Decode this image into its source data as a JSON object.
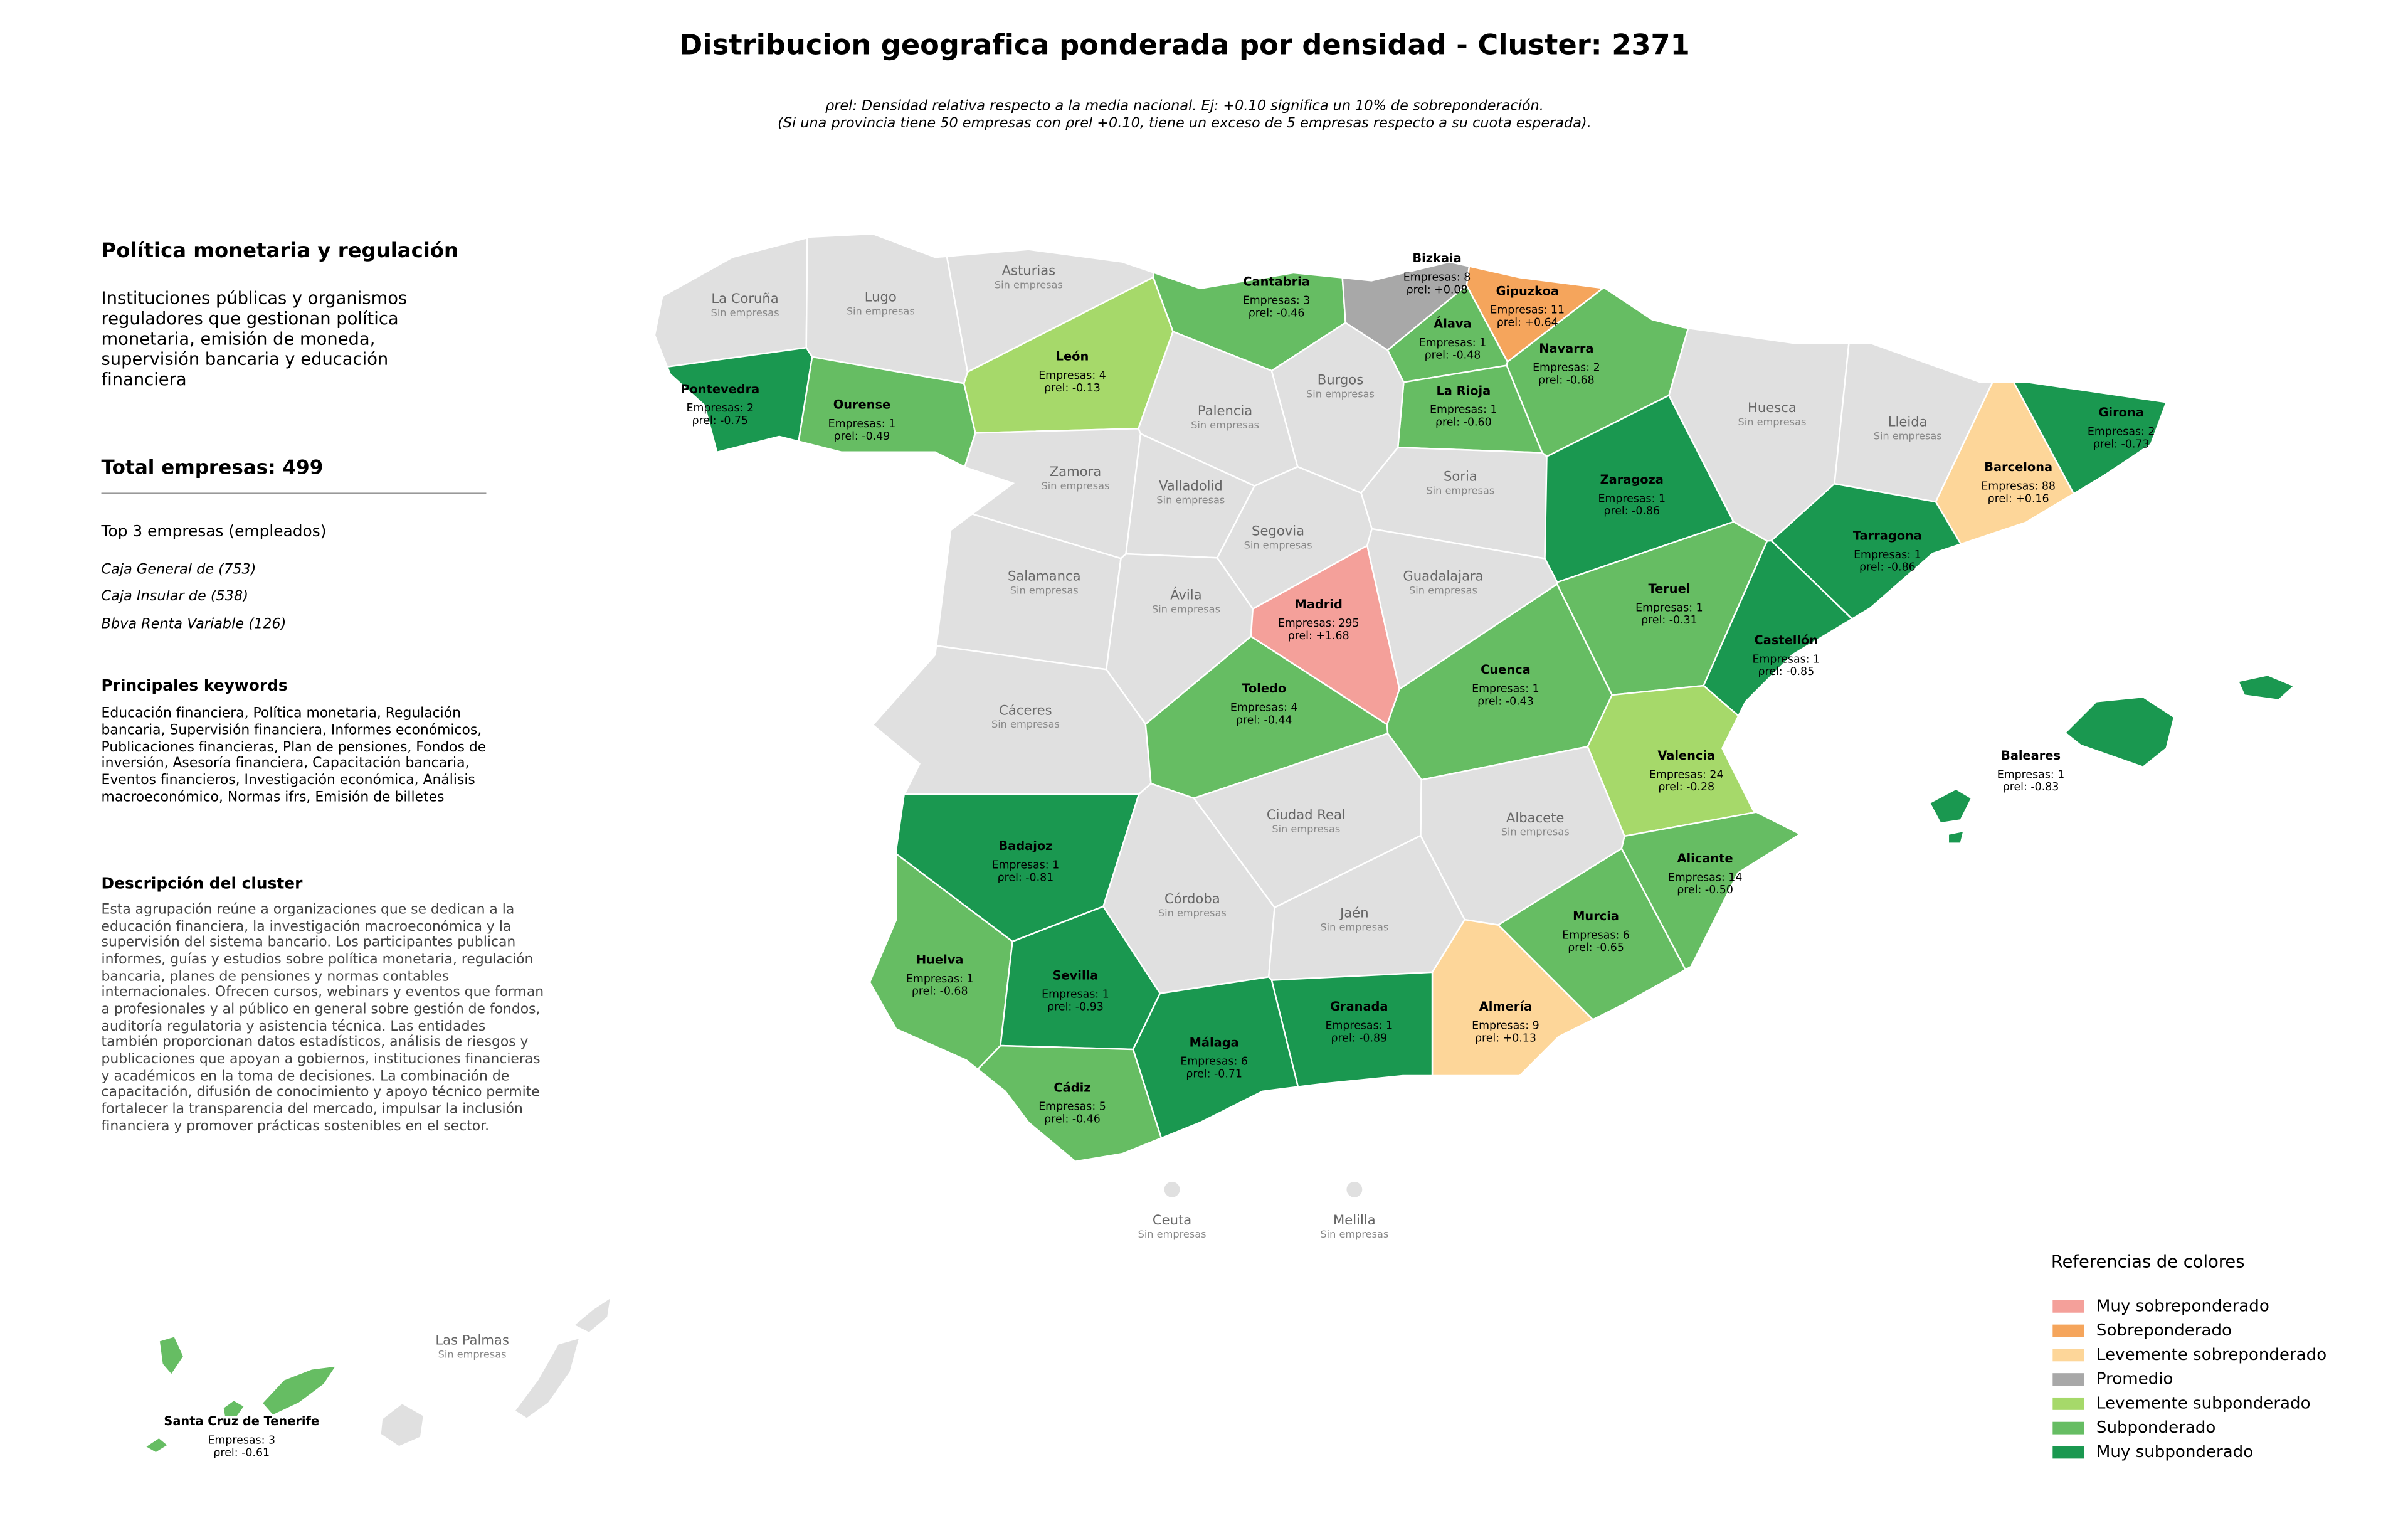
{
  "header": {
    "title": "Distribucion geografica ponderada por densidad - Cluster: 2371",
    "subtitle_lines": [
      "ρrel: Densidad relativa respecto a la media nacional. Ej: +0.10 significa un 10% de sobreponderación.",
      "(Si una provincia tiene 50 empresas con ρrel +0.10, tiene un exceso de 5 empresas respecto a su cuota esperada)."
    ]
  },
  "panel": {
    "title": "Política monetaria y regulación",
    "intro": "Instituciones públicas y organismos reguladores que gestionan política monetaria, emisión de moneda, supervisión bancaria y educación financiera",
    "total": "Total empresas: 499",
    "top_title": "Top 3 empresas (empleados)",
    "top": [
      "Caja General de (753)",
      "Caja Insular de (538)",
      "Bbva Renta Variable (126)"
    ],
    "keywords_title": "Principales keywords",
    "keywords": "Educación financiera, Política monetaria, Regulación bancaria, Supervisión financiera, Informes económicos, Publicaciones financieras, Plan de pensiones, Fondos de inversión, Asesoría financiera, Capacitación bancaria, Eventos financieros, Investigación económica, Análisis macroeconómico, Normas ifrs, Emisión de billetes",
    "description_title": "Descripción del cluster",
    "description": "Esta agrupación reúne a organizaciones que se dedican a la educación financiera, la investigación macroeconómica y la supervisión del sistema bancario. Los participantes publican informes, guías y estudios sobre política monetaria, regulación bancaria, planes de pensiones y normas contables internacionales. Ofrecen cursos, webinars y eventos que forman a profesionales y al público en general sobre gestión de fondos, auditoría regulatoria y asistencia técnica. Las entidades también proporcionan datos estadísticos, análisis de riesgos y publicaciones que apoyan a gobiernos, instituciones financieras y académicos en la toma de decisiones. La combinación de capacitación, difusión de conocimiento y apoyo técnico permite fortalecer la transparencia del mercado, impulsar la inclusión financiera y promover prácticas sostenibles en el sector."
  },
  "legend": {
    "title": "Referencias de colores",
    "items": [
      {
        "label": "Muy sobreponderado",
        "color": "#f4a09a"
      },
      {
        "label": "Sobreponderado",
        "color": "#f5a55c"
      },
      {
        "label": "Levemente sobreponderado",
        "color": "#fdd699"
      },
      {
        "label": "Promedio",
        "color": "#a8a8a8"
      },
      {
        "label": "Levemente subponderado",
        "color": "#a6d96a"
      },
      {
        "label": "Subponderado",
        "color": "#66bd63"
      },
      {
        "label": "Muy subponderado",
        "color": "#1a9850"
      }
    ]
  },
  "map": {
    "regions": [
      {
        "name": "La Coruña",
        "status": "Sin empresas"
      },
      {
        "name": "Lugo",
        "status": "Sin empresas"
      },
      {
        "name": "Asturias",
        "status": "Sin empresas"
      },
      {
        "name": "Cantabria",
        "count": "Empresas: 3",
        "rho": "ρrel: -0.46",
        "category": "Subponderado"
      },
      {
        "name": "Bizkaia",
        "count": "Empresas: 8",
        "rho": "ρrel: +0.08",
        "category": "Promedio"
      },
      {
        "name": "Gipuzkoa",
        "count": "Empresas: 11",
        "rho": "ρrel: +0.64",
        "category": "Sobreponderado"
      },
      {
        "name": "Álava",
        "count": "Empresas: 1",
        "rho": "ρrel: -0.48",
        "category": "Subponderado"
      },
      {
        "name": "Navarra",
        "count": "Empresas: 2",
        "rho": "ρrel: -0.68",
        "category": "Subponderado"
      },
      {
        "name": "La Rioja",
        "count": "Empresas: 1",
        "rho": "ρrel: -0.60",
        "category": "Subponderado"
      },
      {
        "name": "Pontevedra",
        "count": "Empresas: 2",
        "rho": "ρrel: -0.75",
        "category": "Muy subponderado"
      },
      {
        "name": "Ourense",
        "count": "Empresas: 1",
        "rho": "ρrel: -0.49",
        "category": "Subponderado"
      },
      {
        "name": "León",
        "count": "Empresas: 4",
        "rho": "ρrel: -0.13",
        "category": "Levemente subponderado"
      },
      {
        "name": "Palencia",
        "status": "Sin empresas"
      },
      {
        "name": "Burgos",
        "status": "Sin empresas"
      },
      {
        "name": "Zamora",
        "status": "Sin empresas"
      },
      {
        "name": "Valladolid",
        "status": "Sin empresas"
      },
      {
        "name": "Soria",
        "status": "Sin empresas"
      },
      {
        "name": "Zaragoza",
        "count": "Empresas: 1",
        "rho": "ρrel: -0.86",
        "category": "Muy subponderado"
      },
      {
        "name": "Huesca",
        "status": "Sin empresas"
      },
      {
        "name": "Lleida",
        "status": "Sin empresas"
      },
      {
        "name": "Girona",
        "count": "Empresas: 2",
        "rho": "ρrel: -0.73",
        "category": "Muy subponderado"
      },
      {
        "name": "Barcelona",
        "count": "Empresas: 88",
        "rho": "ρrel: +0.16",
        "category": "Levemente sobreponderado"
      },
      {
        "name": "Tarragona",
        "count": "Empresas: 1",
        "rho": "ρrel: -0.86",
        "category": "Muy subponderado"
      },
      {
        "name": "Segovia",
        "status": "Sin empresas"
      },
      {
        "name": "Salamanca",
        "status": "Sin empresas"
      },
      {
        "name": "Ávila",
        "status": "Sin empresas"
      },
      {
        "name": "Madrid",
        "count": "Empresas: 295",
        "rho": "ρrel: +1.68",
        "category": "Muy sobreponderado"
      },
      {
        "name": "Guadalajara",
        "status": "Sin empresas"
      },
      {
        "name": "Teruel",
        "count": "Empresas: 1",
        "rho": "ρrel: -0.31",
        "category": "Subponderado"
      },
      {
        "name": "Castellón",
        "count": "Empresas: 1",
        "rho": "ρrel: -0.85",
        "category": "Muy subponderado"
      },
      {
        "name": "Cáceres",
        "status": "Sin empresas"
      },
      {
        "name": "Toledo",
        "count": "Empresas: 4",
        "rho": "ρrel: -0.44",
        "category": "Subponderado"
      },
      {
        "name": "Cuenca",
        "count": "Empresas: 1",
        "rho": "ρrel: -0.43",
        "category": "Subponderado"
      },
      {
        "name": "Valencia",
        "count": "Empresas: 24",
        "rho": "ρrel: -0.28",
        "category": "Levemente subponderado"
      },
      {
        "name": "Badajoz",
        "count": "Empresas: 1",
        "rho": "ρrel: -0.81",
        "category": "Muy subponderado"
      },
      {
        "name": "Ciudad Real",
        "status": "Sin empresas"
      },
      {
        "name": "Albacete",
        "status": "Sin empresas"
      },
      {
        "name": "Alicante",
        "count": "Empresas: 14",
        "rho": "ρrel: -0.50",
        "category": "Subponderado"
      },
      {
        "name": "Córdoba",
        "status": "Sin empresas"
      },
      {
        "name": "Jaén",
        "status": "Sin empresas"
      },
      {
        "name": "Murcia",
        "count": "Empresas: 6",
        "rho": "ρrel: -0.65",
        "category": "Subponderado"
      },
      {
        "name": "Huelva",
        "count": "Empresas: 1",
        "rho": "ρrel: -0.68",
        "category": "Subponderado"
      },
      {
        "name": "Sevilla",
        "count": "Empresas: 1",
        "rho": "ρrel: -0.93",
        "category": "Muy subponderado"
      },
      {
        "name": "Granada",
        "count": "Empresas: 1",
        "rho": "ρrel: -0.89",
        "category": "Muy subponderado"
      },
      {
        "name": "Almería",
        "count": "Empresas: 9",
        "rho": "ρrel: +0.13",
        "category": "Levemente sobreponderado"
      },
      {
        "name": "Málaga",
        "count": "Empresas: 6",
        "rho": "ρrel: -0.71",
        "category": "Muy subponderado"
      },
      {
        "name": "Cádiz",
        "count": "Empresas: 5",
        "rho": "ρrel: -0.46",
        "category": "Subponderado"
      },
      {
        "name": "Baleares",
        "count": "Empresas: 1",
        "rho": "ρrel: -0.83",
        "category": "Muy subponderado"
      },
      {
        "name": "Ceuta",
        "status": "Sin empresas"
      },
      {
        "name": "Melilla",
        "status": "Sin empresas"
      },
      {
        "name": "Las Palmas",
        "status": "Sin empresas"
      },
      {
        "name": "Santa Cruz de Tenerife",
        "count": "Empresas: 3",
        "rho": "ρrel: -0.61",
        "category": "Subponderado"
      }
    ]
  }
}
